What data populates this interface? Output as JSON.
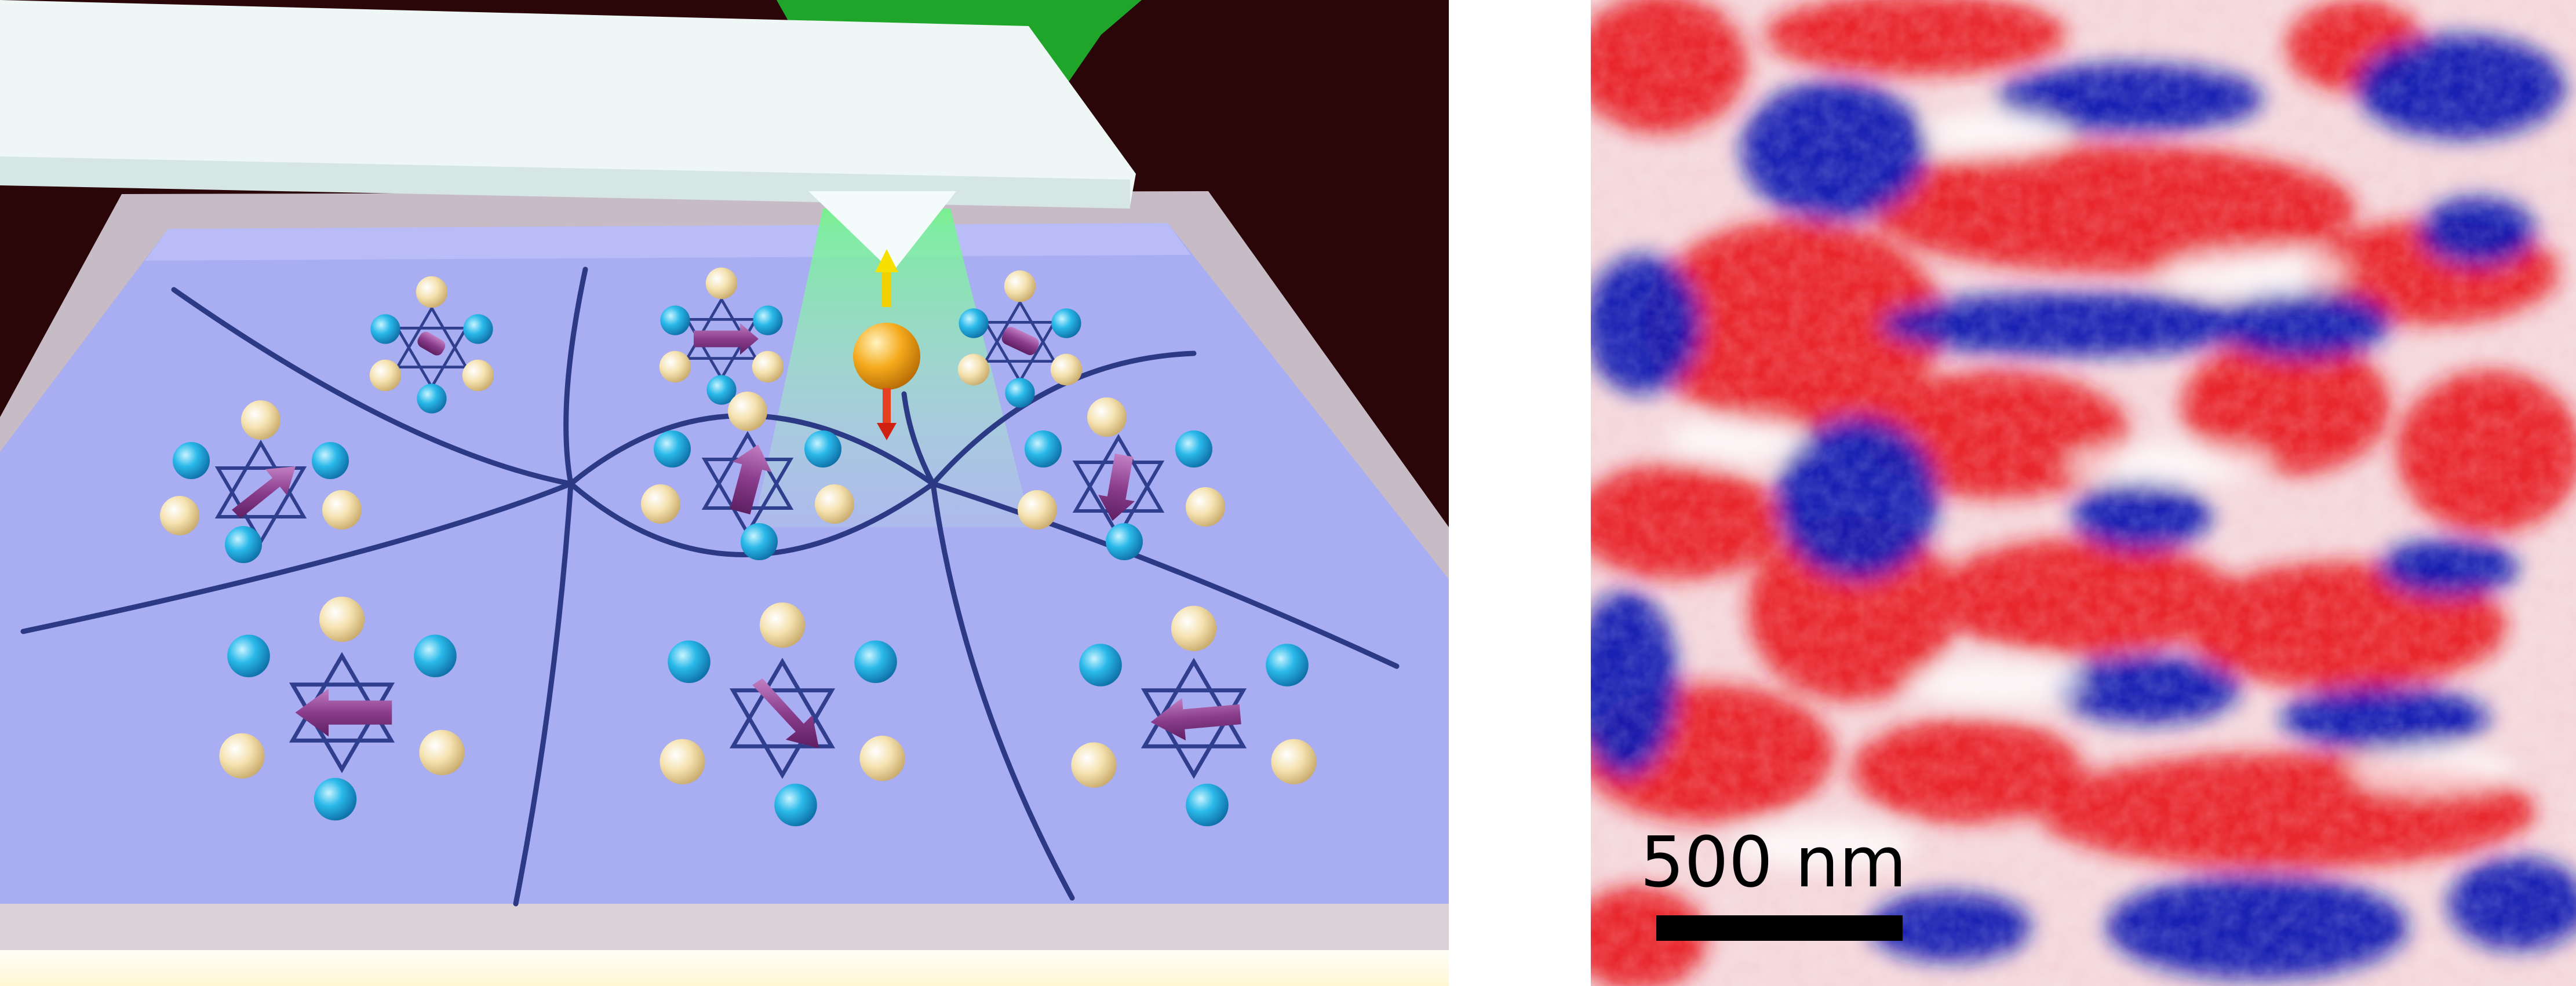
{
  "scale_bar": {
    "label": "500 nm"
  },
  "scene": {
    "icons": [
      "cantilever-tip",
      "nv-spin-sensor",
      "green-laser-beam",
      "kagome-spin-lattice",
      "chirality-arrow",
      "domain-wall-line"
    ],
    "colors": {
      "background_dark": "#2b0608",
      "film": "#aab0f5",
      "domain_wall": "#2c3a86",
      "spin_blue": "#27b5e8",
      "spin_cream": "#f3dfaa",
      "chirality_arrow": "#8b3e8e",
      "laser": "#33cc44",
      "sensor": "#f0a81e"
    }
  },
  "map": {
    "colors": {
      "positive": "#e8161e",
      "neutral": "#ffffff",
      "negative": "#0a12a8"
    }
  }
}
